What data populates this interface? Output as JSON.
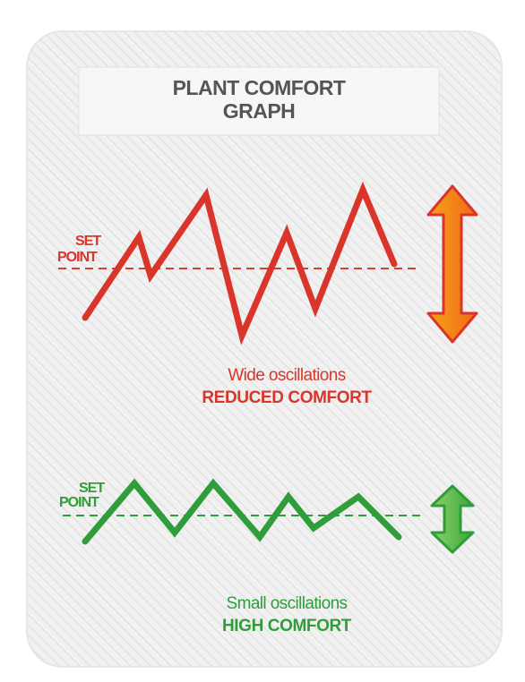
{
  "title": {
    "lines": [
      "PLANT COMFORT",
      "GRAPH"
    ]
  },
  "panels": [
    {
      "set_point": [
        "SET",
        "POINT"
      ],
      "caption": "Wide oscillations",
      "verdict": "REDUCED COMFORT"
    },
    {
      "set_point": [
        "SET",
        "POINT"
      ],
      "caption": "Small oscillations",
      "verdict": "HIGH COMFORT"
    }
  ]
}
